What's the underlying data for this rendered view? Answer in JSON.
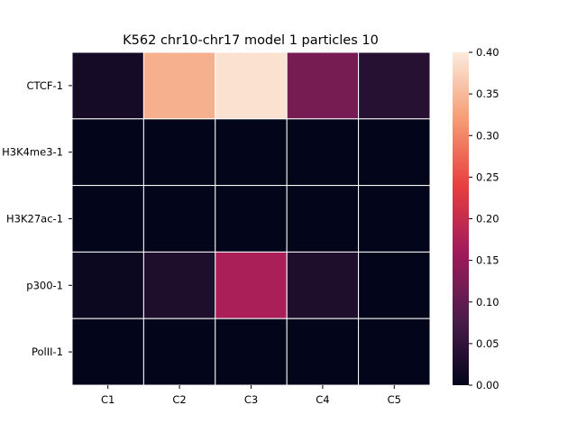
{
  "chart_data": {
    "type": "heatmap",
    "title": "K562 chr10-chr17 model 1 particles 10",
    "rows": [
      "CTCF-1",
      "H3K4me3-1",
      "H3K27ac-1",
      "p300-1",
      "PolII-1"
    ],
    "columns": [
      "C1",
      "C2",
      "C3",
      "C4",
      "C5"
    ],
    "values": [
      [
        0.02,
        0.34,
        0.39,
        0.12,
        0.04
      ],
      [
        0.0,
        0.0,
        0.0,
        0.0,
        0.0
      ],
      [
        0.0,
        0.0,
        0.0,
        0.0,
        0.0
      ],
      [
        0.01,
        0.03,
        0.17,
        0.03,
        0.0
      ],
      [
        0.0,
        0.0,
        0.0,
        0.0,
        0.0
      ]
    ],
    "colorbar": {
      "min": 0.0,
      "max": 0.4,
      "ticks": [
        "0.00",
        "0.05",
        "0.10",
        "0.15",
        "0.20",
        "0.25",
        "0.30",
        "0.35",
        "0.40"
      ],
      "colormap": "rocket",
      "stops": [
        "#03051a",
        "#4c1d4b",
        "#a11a5b",
        "#e83f3f",
        "#f69c73",
        "#faebdd"
      ]
    },
    "grid_line_color": "#ffffff"
  }
}
